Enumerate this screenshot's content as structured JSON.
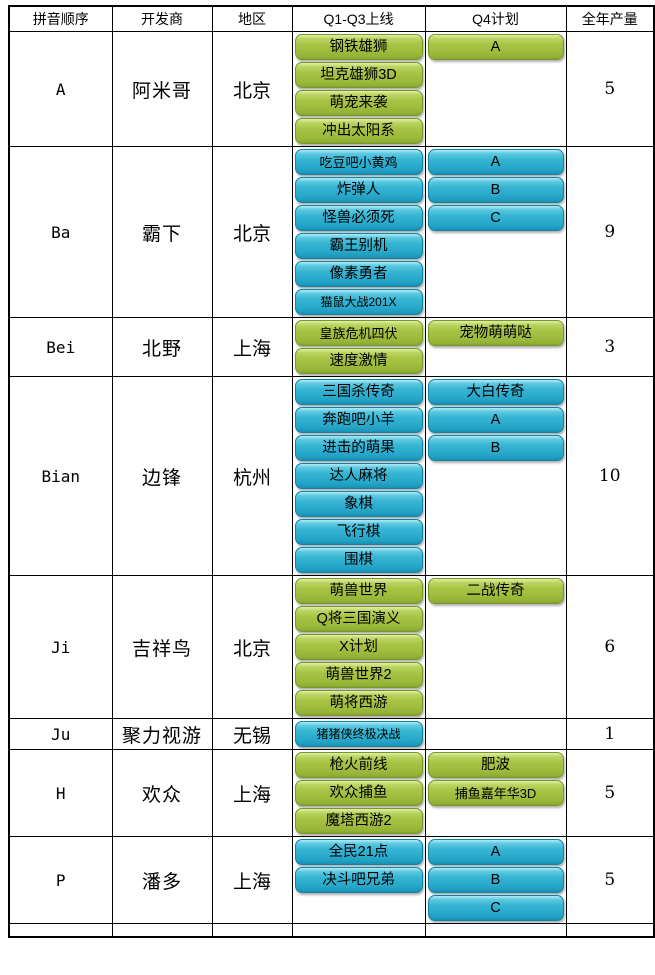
{
  "table": {
    "headers": [
      "拼音顺序",
      "开发商",
      "地区",
      "Q1-Q3上线",
      "Q4计划",
      "全年产量"
    ],
    "rows": [
      {
        "pinyin": "A",
        "developer": "阿米哥",
        "region": "北京",
        "color": "green",
        "q1q3": [
          "钢铁雄狮",
          "坦克雄狮3D",
          "萌宠来袭",
          "冲出太阳系"
        ],
        "q4": [
          "A"
        ],
        "total": "5"
      },
      {
        "pinyin": "Ba",
        "developer": "霸下",
        "region": "北京",
        "color": "blue",
        "q1q3": [
          "吃豆吧小黄鸡",
          "炸弹人",
          "怪兽必须死",
          "霸王别机",
          "像素勇者",
          "猫鼠大战201X"
        ],
        "q4": [
          "A",
          "B",
          "C"
        ],
        "total": "9"
      },
      {
        "pinyin": "Bei",
        "developer": "北野",
        "region": "上海",
        "color": "green",
        "q1q3": [
          "皇族危机四伏",
          "速度激情"
        ],
        "q4": [
          "宠物萌萌哒"
        ],
        "total": "3"
      },
      {
        "pinyin": "Bian",
        "developer": "边锋",
        "region": "杭州",
        "color": "blue",
        "q1q3": [
          "三国杀传奇",
          "奔跑吧小羊",
          "进击的萌果",
          "达人麻将",
          "象棋",
          "飞行棋",
          "围棋"
        ],
        "q4": [
          "大白传奇",
          "A",
          "B"
        ],
        "total": "10"
      },
      {
        "pinyin": "Ji",
        "developer": "吉祥鸟",
        "region": "北京",
        "color": "green",
        "q1q3": [
          "萌兽世界",
          "Q将三国演义",
          "X计划",
          "萌兽世界2",
          "萌将西游"
        ],
        "q4": [
          "二战传奇"
        ],
        "total": "6"
      },
      {
        "pinyin": "Ju",
        "developer": "聚力视游",
        "region": "无锡",
        "color": "blue",
        "q1q3": [
          "猪猪侠终极决战"
        ],
        "q4": [],
        "total": "1"
      },
      {
        "pinyin": "H",
        "developer": "欢众",
        "region": "上海",
        "color": "green",
        "q1q3": [
          "枪火前线",
          "欢众捕鱼",
          "魔塔西游2"
        ],
        "q4": [
          "肥波",
          "捕鱼嘉年华3D"
        ],
        "total": "5"
      },
      {
        "pinyin": "P",
        "developer": "潘多",
        "region": "上海",
        "color": "blue",
        "q1q3": [
          "全民21点",
          "决斗吧兄弟"
        ],
        "q4": [
          "A",
          "B",
          "C"
        ],
        "total": "5"
      }
    ]
  },
  "colors": {
    "green_button": "#a6c13f",
    "blue_button": "#2fb1d1",
    "grid_line": "#000000"
  }
}
